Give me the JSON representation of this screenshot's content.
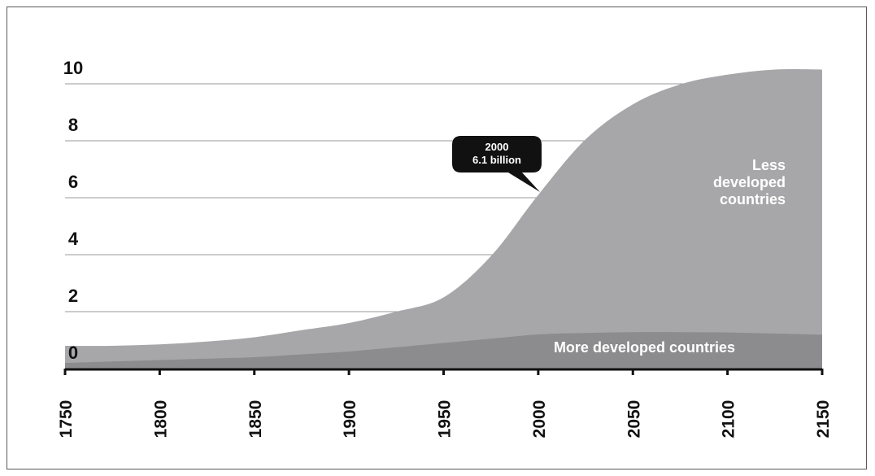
{
  "chart_data": {
    "type": "area",
    "stacked": true,
    "x": [
      1750,
      1775,
      1800,
      1825,
      1850,
      1875,
      1900,
      1925,
      1950,
      1975,
      2000,
      2025,
      2050,
      2075,
      2100,
      2125,
      2150
    ],
    "series": [
      {
        "name": "More developed countries",
        "color": "#8c8c8e",
        "values": [
          0.2,
          0.25,
          0.3,
          0.35,
          0.4,
          0.5,
          0.6,
          0.75,
          0.9,
          1.05,
          1.2,
          1.25,
          1.28,
          1.28,
          1.27,
          1.23,
          1.19
        ]
      },
      {
        "name": "Less developed countries",
        "color": "#a7a7a9",
        "values": [
          0.6,
          0.55,
          0.55,
          0.6,
          0.7,
          0.85,
          1.0,
          1.25,
          1.6,
          2.9,
          4.9,
          6.8,
          8.0,
          8.7,
          9.05,
          9.27,
          9.31
        ]
      }
    ],
    "ylim": [
      0,
      10.5
    ],
    "yticks": [
      "0",
      "2",
      "4",
      "6",
      "8",
      "10"
    ],
    "xticks": [
      "1750",
      "1800",
      "1850",
      "1900",
      "1950",
      "2000",
      "2050",
      "2100",
      "2150"
    ],
    "grid": true,
    "annotation": {
      "year": "2000",
      "value": "6.1 billion",
      "x": 2000,
      "y": 6.1
    },
    "region_labels": {
      "less": [
        "Less",
        "developed",
        "countries"
      ],
      "more": "More developed countries"
    }
  }
}
